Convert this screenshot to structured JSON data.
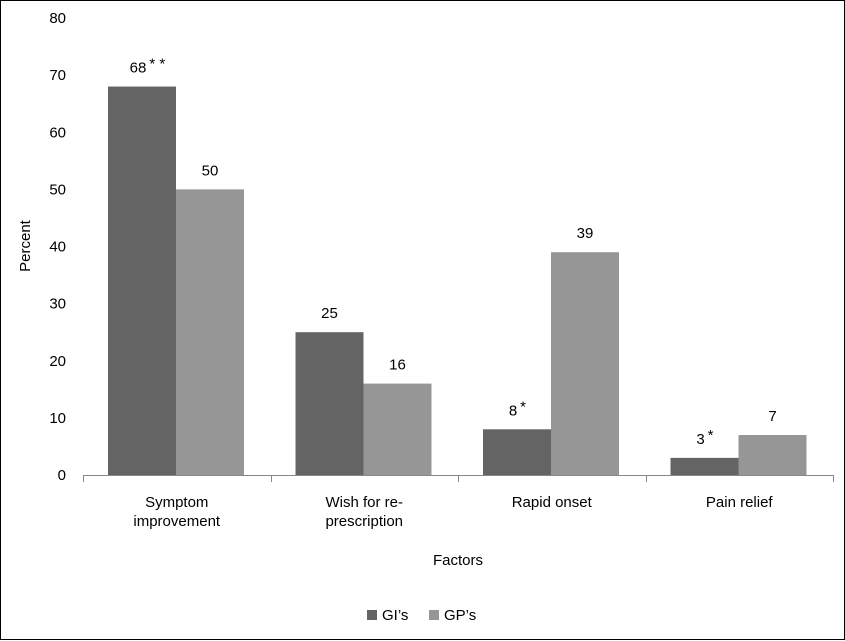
{
  "chart_data": {
    "type": "bar",
    "title": "",
    "xlabel": "Factors",
    "ylabel": "Percent",
    "ylim": [
      0,
      80
    ],
    "yticks": [
      0,
      10,
      20,
      30,
      40,
      50,
      60,
      70,
      80
    ],
    "categories": [
      [
        "Symptom",
        "improvement"
      ],
      [
        "Wish for re-",
        "prescription"
      ],
      [
        "Rapid onset"
      ],
      [
        "Pain relief"
      ]
    ],
    "series": [
      {
        "name": "GI’s",
        "color": "#646464",
        "values": [
          68,
          25,
          8,
          3
        ],
        "labels": [
          "68",
          "25",
          "8",
          "3"
        ],
        "markers": [
          "* *",
          "",
          "*",
          "*"
        ]
      },
      {
        "name": "GP’s",
        "color": "#969696",
        "values": [
          50,
          16,
          39,
          7
        ],
        "labels": [
          "50",
          "16",
          "39",
          "7"
        ],
        "markers": [
          "",
          "",
          "",
          ""
        ]
      }
    ],
    "grid": false,
    "legend": "bottom-center"
  }
}
